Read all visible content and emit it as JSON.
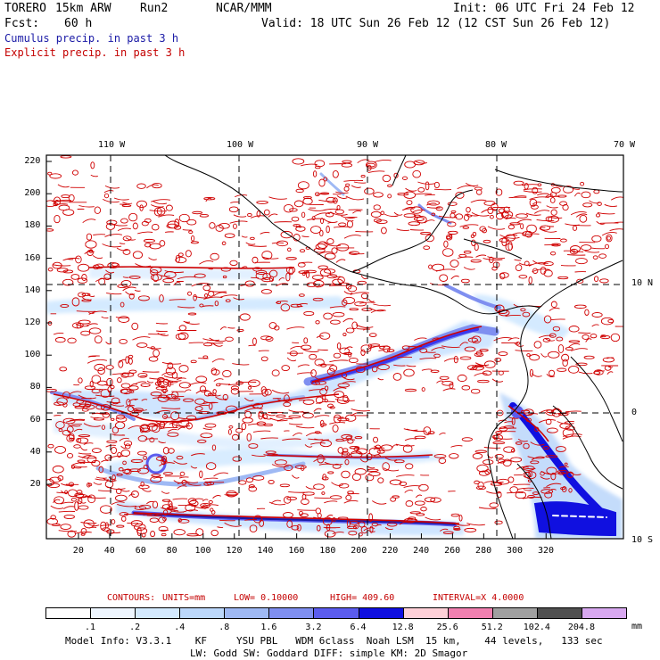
{
  "header": {
    "model": "TORERO",
    "grid": "15km ARW",
    "run": "Run2",
    "org": "NCAR/MMM",
    "init": "Init: 06 UTC Fri 24 Feb 12",
    "fcst_label": "Fcst:",
    "fcst_value": "60 h",
    "valid": "Valid: 18 UTC Sun 26 Feb 12 (12 CST Sun 26 Feb 12)"
  },
  "legend_lines": {
    "cumulus": "Cumulus precip. in past 3 h",
    "explicit": "Explicit precip. in past 3 h"
  },
  "top_lon_labels": [
    "110 W",
    "100 W",
    "90 W",
    "80 W",
    "70 W"
  ],
  "right_lat_labels": [
    "10 N",
    "0",
    "10 S"
  ],
  "left_y_ticks": [
    "220",
    "200",
    "180",
    "160",
    "140",
    "120",
    "100",
    "80",
    "60",
    "40",
    "20"
  ],
  "bottom_x_ticks": [
    "20",
    "40",
    "60",
    "80",
    "100",
    "120",
    "140",
    "160",
    "180",
    "200",
    "220",
    "240",
    "260",
    "280",
    "300",
    "320"
  ],
  "contour_note": {
    "label": "CONTOURS:",
    "units": "UNITS=mm",
    "low": "LOW= 0.10000",
    "high": "HIGH= 409.60",
    "interval": "INTERVAL=X 4.0000"
  },
  "colorbar": {
    "labels": [
      ".1",
      ".2",
      ".4",
      ".8",
      "1.6",
      "3.2",
      "6.4",
      "12.8",
      "25.6",
      "51.2",
      "102.4",
      "204.8"
    ],
    "unit": "mm",
    "colors": [
      "#ffffff",
      "#eef6ff",
      "#d4eaff",
      "#bcd8fb",
      "#9fb9f4",
      "#7f8ff0",
      "#5b5cee",
      "#1010e0",
      "#ffd0d8",
      "#f080b0",
      "#a0a0a0",
      "#505050",
      "#d8a8f0"
    ]
  },
  "model_info": {
    "line1": "Model Info: V3.3.1    KF     YSU PBL   WDM 6class  Noah LSM  15 km,    44 levels,   133 sec",
    "line2": "LW: Godd SW: Goddard DIFF: simple KM: 2D Smagor"
  }
}
